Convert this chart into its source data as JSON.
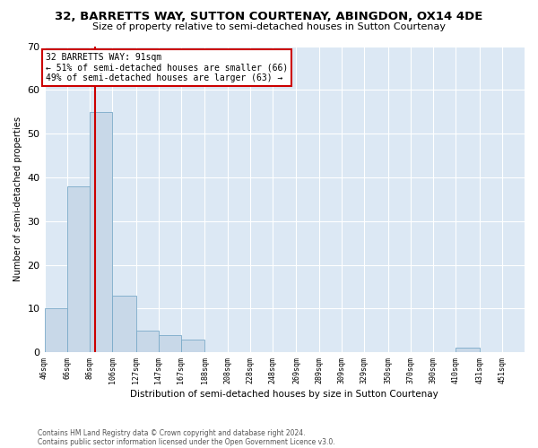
{
  "title": "32, BARRETTS WAY, SUTTON COURTENAY, ABINGDON, OX14 4DE",
  "subtitle": "Size of property relative to semi-detached houses in Sutton Courtenay",
  "xlabel": "Distribution of semi-detached houses by size in Sutton Courtenay",
  "ylabel": "Number of semi-detached properties",
  "footer_line1": "Contains HM Land Registry data © Crown copyright and database right 2024.",
  "footer_line2": "Contains public sector information licensed under the Open Government Licence v3.0.",
  "bin_labels": [
    "46sqm",
    "66sqm",
    "86sqm",
    "106sqm",
    "127sqm",
    "147sqm",
    "167sqm",
    "188sqm",
    "208sqm",
    "228sqm",
    "248sqm",
    "269sqm",
    "289sqm",
    "309sqm",
    "329sqm",
    "350sqm",
    "370sqm",
    "390sqm",
    "410sqm",
    "431sqm",
    "451sqm"
  ],
  "bar_values": [
    10,
    38,
    55,
    13,
    5,
    4,
    3,
    0,
    0,
    0,
    0,
    0,
    0,
    0,
    0,
    0,
    0,
    0,
    1,
    0,
    0
  ],
  "bar_color": "#c8d8e8",
  "bar_edgecolor": "#7aaac8",
  "vline_x": 91,
  "vline_color": "#cc0000",
  "ylim": [
    0,
    70
  ],
  "yticks": [
    0,
    10,
    20,
    30,
    40,
    50,
    60,
    70
  ],
  "annotation_line1": "32 BARRETTS WAY: 91sqm",
  "annotation_line2": "← 51% of semi-detached houses are smaller (66)",
  "annotation_line3": "49% of semi-detached houses are larger (63) →",
  "annotation_box_edgecolor": "#cc0000",
  "bg_color": "#dce8f4",
  "grid_color": "#ffffff",
  "bin_edges": [
    46,
    66,
    86,
    106,
    127,
    147,
    167,
    188,
    208,
    228,
    248,
    269,
    289,
    309,
    329,
    350,
    370,
    390,
    410,
    431,
    451,
    471
  ]
}
